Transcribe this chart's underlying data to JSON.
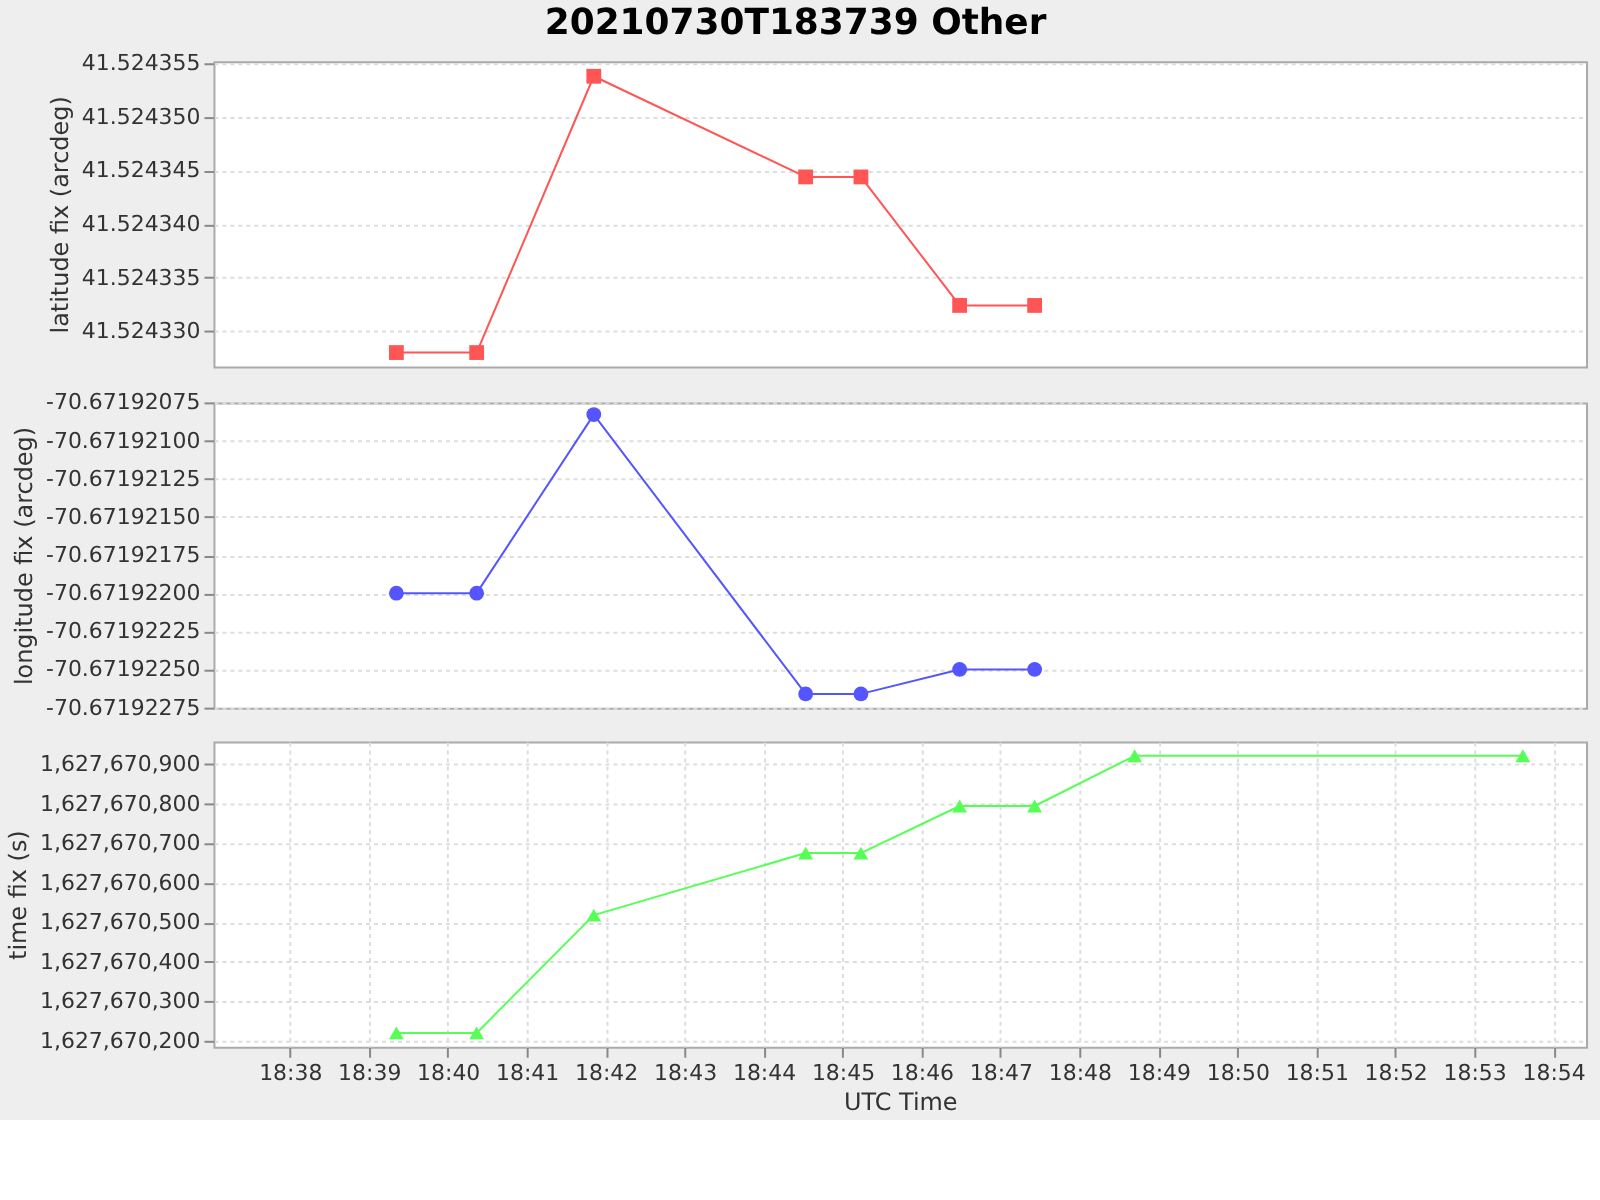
{
  "chart_data": [
    {
      "type": "line",
      "title": "20210730T183739 Other",
      "ylabel": "latitude fix (arcdeg)",
      "marker": "square",
      "line_style": "solid",
      "grid": true,
      "tick_labels": "y",
      "x": [
        "2021-07-30T18:39:21",
        "2021-07-30T18:40:22",
        "2021-07-30T18:41:51",
        "2021-07-30T18:44:32",
        "2021-07-30T18:45:14",
        "2021-07-30T18:46:29",
        "2021-07-30T18:47:26"
      ],
      "xlim": [
        "2021-07-30T18:37:02",
        "2021-07-30T18:54:25"
      ],
      "series": [
        {
          "color": "#ff5555",
          "values": [
            41.524328,
            41.524328,
            41.5243538,
            41.5243444,
            41.5243444,
            41.5243324,
            41.5243324
          ]
        }
      ],
      "ylim": [
        41.5243267,
        41.5243552
      ],
      "yticks": [
        {
          "value": 41.52433,
          "label": "41.524330"
        },
        {
          "value": 41.524335,
          "label": "41.524335"
        },
        {
          "value": 41.52434,
          "label": "41.524340"
        },
        {
          "value": 41.524345,
          "label": "41.524345"
        },
        {
          "value": 41.52435,
          "label": "41.524350"
        },
        {
          "value": 41.524355,
          "label": "41.524355"
        }
      ]
    },
    {
      "type": "line",
      "ylabel": "longitude fix (arcdeg)",
      "marker": "circle",
      "line_style": "solid",
      "grid": true,
      "tick_labels": "y",
      "x": [
        "2021-07-30T18:39:21",
        "2021-07-30T18:40:22",
        "2021-07-30T18:41:51",
        "2021-07-30T18:44:32",
        "2021-07-30T18:45:14",
        "2021-07-30T18:46:29",
        "2021-07-30T18:47:26"
      ],
      "xlim": [
        "2021-07-30T18:37:02",
        "2021-07-30T18:54:25"
      ],
      "series": [
        {
          "color": "#5555ff",
          "values": [
            -70.671922,
            -70.671922,
            -70.67192083,
            -70.67192266,
            -70.67192266,
            -70.6719225,
            -70.6719225
          ]
        }
      ],
      "ylim": [
        -70.67192275,
        -70.67192075
      ],
      "yticks": [
        {
          "value": -70.67192275,
          "label": "-70.67192275"
        },
        {
          "value": -70.6719225,
          "label": "-70.67192250"
        },
        {
          "value": -70.67192225,
          "label": "-70.67192225"
        },
        {
          "value": -70.671922,
          "label": "-70.67192200"
        },
        {
          "value": -70.67192175,
          "label": "-70.67192175"
        },
        {
          "value": -70.6719215,
          "label": "-70.67192150"
        },
        {
          "value": -70.67192125,
          "label": "-70.67192125"
        },
        {
          "value": -70.671921,
          "label": "-70.67192100"
        },
        {
          "value": -70.67192075,
          "label": "-70.67192075"
        }
      ]
    },
    {
      "type": "line",
      "xlabel": "UTC Time",
      "ylabel": "time fix (s)",
      "marker": "triangle",
      "line_style": "solid",
      "grid": true,
      "x": [
        "2021-07-30T18:39:21",
        "2021-07-30T18:40:22",
        "2021-07-30T18:41:51",
        "2021-07-30T18:44:32",
        "2021-07-30T18:45:14",
        "2021-07-30T18:46:29",
        "2021-07-30T18:47:26",
        "2021-07-30T18:48:42",
        "2021-07-30T18:53:37"
      ],
      "xlim": [
        "2021-07-30T18:37:02",
        "2021-07-30T18:54:25"
      ],
      "xticks": [
        {
          "value": "2021-07-30T18:38",
          "label": "18:38"
        },
        {
          "value": "2021-07-30T18:39",
          "label": "18:39"
        },
        {
          "value": "2021-07-30T18:40",
          "label": "18:40"
        },
        {
          "value": "2021-07-30T18:41",
          "label": "18:41"
        },
        {
          "value": "2021-07-30T18:42",
          "label": "18:42"
        },
        {
          "value": "2021-07-30T18:43",
          "label": "18:43"
        },
        {
          "value": "2021-07-30T18:44",
          "label": "18:44"
        },
        {
          "value": "2021-07-30T18:45",
          "label": "18:45"
        },
        {
          "value": "2021-07-30T18:46",
          "label": "18:46"
        },
        {
          "value": "2021-07-30T18:47",
          "label": "18:47"
        },
        {
          "value": "2021-07-30T18:48",
          "label": "18:48"
        },
        {
          "value": "2021-07-30T18:49",
          "label": "18:49"
        },
        {
          "value": "2021-07-30T18:50",
          "label": "18:50"
        },
        {
          "value": "2021-07-30T18:51",
          "label": "18:51"
        },
        {
          "value": "2021-07-30T18:52",
          "label": "18:52"
        },
        {
          "value": "2021-07-30T18:53",
          "label": "18:53"
        },
        {
          "value": "2021-07-30T18:54",
          "label": "18:54"
        }
      ],
      "series": [
        {
          "color": "#55ff55",
          "values": [
            1627670220,
            1627670220,
            1627670518,
            1627670675,
            1627670675,
            1627670794,
            1627670794,
            1627670921,
            1627670921
          ]
        }
      ],
      "ylim": [
        1627670185,
        1627670957
      ],
      "yticks": [
        {
          "value": 1627670200,
          "label": "1,627,670,200"
        },
        {
          "value": 1627670300,
          "label": "1,627,670,300"
        },
        {
          "value": 1627670400,
          "label": "1,627,670,400"
        },
        {
          "value": 1627670500,
          "label": "1,627,670,500"
        },
        {
          "value": 1627670600,
          "label": "1,627,670,600"
        },
        {
          "value": 1627670700,
          "label": "1,627,670,700"
        },
        {
          "value": 1627670800,
          "label": "1,627,670,800"
        },
        {
          "value": 1627670900,
          "label": "1,627,670,900"
        }
      ]
    }
  ]
}
